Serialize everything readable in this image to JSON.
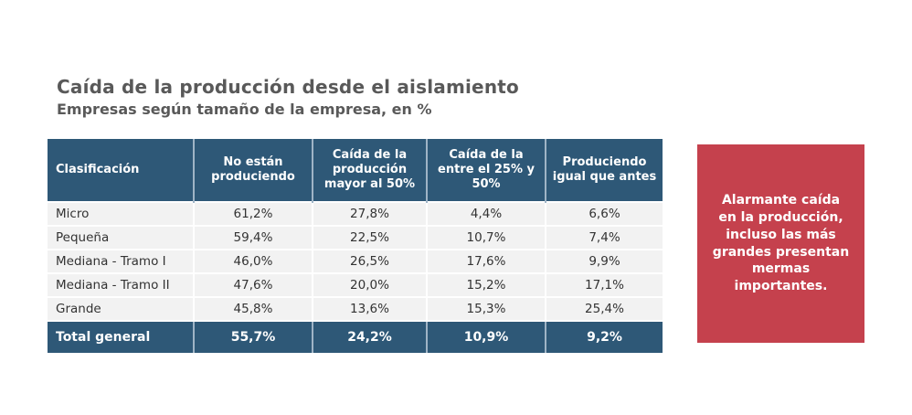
{
  "title": "Caída de la producción desde el aislamiento",
  "subtitle": "Empresas según tamaño de la empresa, en %",
  "colors": {
    "header_blue": "#2E5877",
    "row_gray": "#F2F2F2",
    "callout_red": "#C5414D",
    "title_gray": "#595959"
  },
  "table": {
    "columns": [
      "Clasificación",
      "No están produciendo",
      "Caída de la producción mayor al 50%",
      "Caída de la entre el 25% y 50%",
      "Produciendo igual que antes"
    ],
    "rows": [
      {
        "label": "Micro",
        "values": [
          "61,2%",
          "27,8%",
          "4,4%",
          "6,6%"
        ]
      },
      {
        "label": "Pequeña",
        "values": [
          "59,4%",
          "22,5%",
          "10,7%",
          "7,4%"
        ]
      },
      {
        "label": "Mediana - Tramo I",
        "values": [
          "46,0%",
          "26,5%",
          "17,6%",
          "9,9%"
        ]
      },
      {
        "label": "Mediana - Tramo II",
        "values": [
          "47,6%",
          "20,0%",
          "15,2%",
          "17,1%"
        ]
      },
      {
        "label": "Grande",
        "values": [
          "45,8%",
          "13,6%",
          "15,3%",
          "25,4%"
        ]
      }
    ],
    "total": {
      "label": "Total general",
      "values": [
        "55,7%",
        "24,2%",
        "10,9%",
        "9,2%"
      ]
    }
  },
  "callout": {
    "text": "Alarmante caída en la producción, incluso las más grandes presentan mermas importantes."
  },
  "chart_data": {
    "type": "table",
    "title": "Caída de la producción desde el aislamiento",
    "subtitle": "Empresas según tamaño de la empresa, en %",
    "unit": "%",
    "categories": [
      "Micro",
      "Pequeña",
      "Mediana - Tramo I",
      "Mediana - Tramo II",
      "Grande",
      "Total general"
    ],
    "series": [
      {
        "name": "No están produciendo",
        "values": [
          61.2,
          59.4,
          46.0,
          47.6,
          45.8,
          55.7
        ]
      },
      {
        "name": "Caída de la producción mayor al 50%",
        "values": [
          27.8,
          22.5,
          26.5,
          20.0,
          13.6,
          24.2
        ]
      },
      {
        "name": "Caída de la entre el 25% y 50%",
        "values": [
          4.4,
          10.7,
          17.6,
          15.2,
          15.3,
          10.9
        ]
      },
      {
        "name": "Produciendo igual que antes",
        "values": [
          6.6,
          7.4,
          9.9,
          17.1,
          25.4,
          9.2
        ]
      }
    ]
  }
}
